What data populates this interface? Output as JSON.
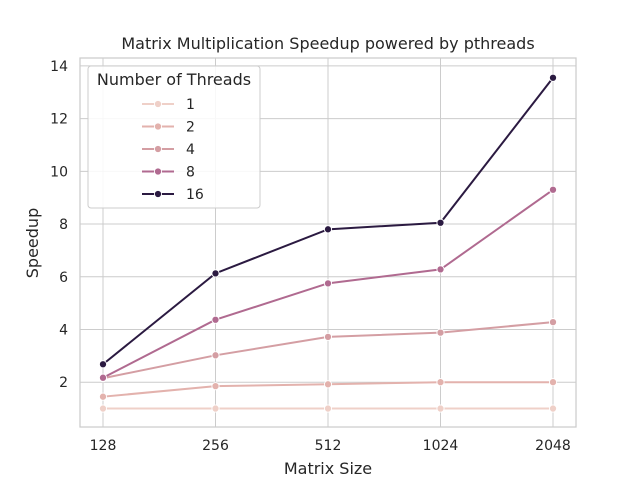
{
  "chart_data": {
    "type": "line",
    "title": "Matrix Multiplication Speedup powered by pthreads",
    "xlabel": "Matrix Size",
    "ylabel": "Speedup",
    "categories": [
      "128",
      "256",
      "512",
      "1024",
      "2048"
    ],
    "ylim": [
      0.3,
      14.3
    ],
    "yticks": [
      "2",
      "4",
      "6",
      "8",
      "10",
      "12",
      "14"
    ],
    "grid": true,
    "legend": {
      "title": "Number of Threads",
      "placement": "top-left"
    },
    "series": [
      {
        "name": "1",
        "color": "#efd0c8",
        "values": [
          1.0,
          1.0,
          1.0,
          1.0,
          1.0
        ]
      },
      {
        "name": "2",
        "color": "#e3b2ad",
        "values": [
          1.45,
          1.85,
          1.92,
          2.0,
          2.0
        ]
      },
      {
        "name": "4",
        "color": "#d49ea3",
        "values": [
          2.15,
          3.02,
          3.72,
          3.88,
          4.28
        ]
      },
      {
        "name": "8",
        "color": "#b06a90",
        "values": [
          2.17,
          4.37,
          5.75,
          6.28,
          9.3
        ]
      },
      {
        "name": "16",
        "color": "#2b1a41",
        "values": [
          2.68,
          6.13,
          7.8,
          8.05,
          13.55
        ]
      }
    ]
  }
}
